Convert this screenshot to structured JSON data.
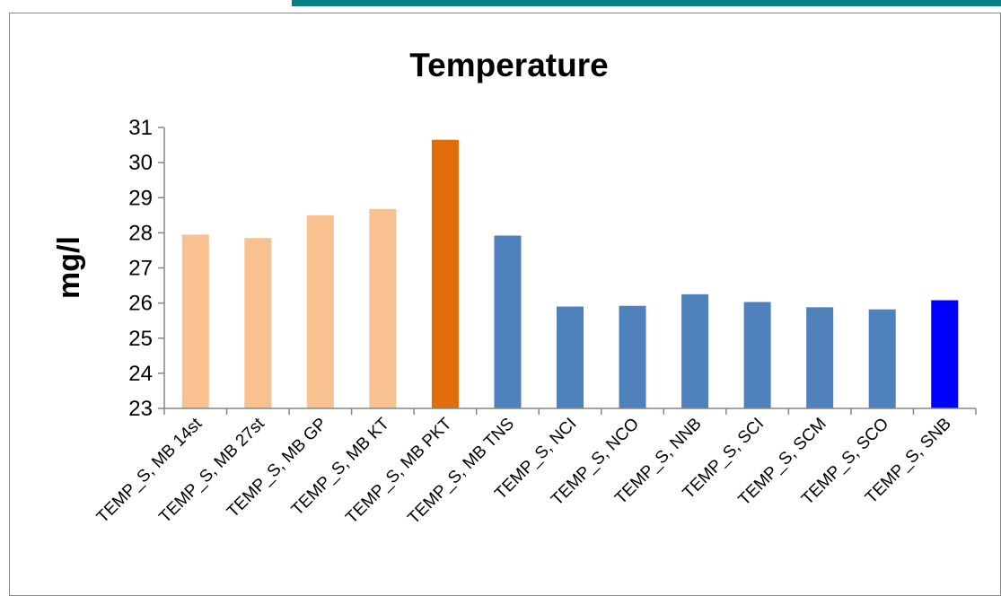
{
  "chart_data": {
    "type": "bar",
    "title": "Temperature",
    "xlabel": "",
    "ylabel": "mg/l",
    "ylim": [
      23,
      31
    ],
    "yticks": [
      23,
      24,
      25,
      26,
      27,
      28,
      29,
      30,
      31
    ],
    "grid": false,
    "legend": "none",
    "categories": [
      "TEMP_S, MB 14st",
      "TEMP_S, MB 27st",
      "TEMP_S, MB GP",
      "TEMP_S, MB KT",
      "TEMP_S, MB PKT",
      "TEMP_S, MB TNS",
      "TEMP_S, NCI",
      "TEMP_S, NCO",
      "TEMP_S, NNB",
      "TEMP_S, SCI",
      "TEMP_S, SCM",
      "TEMP_S, SCO",
      "TEMP_S, SNB"
    ],
    "values": [
      27.95,
      27.85,
      28.5,
      28.68,
      30.65,
      27.92,
      25.9,
      25.92,
      26.25,
      26.03,
      25.88,
      25.82,
      26.08
    ],
    "bar_colors": [
      "#f9c190",
      "#f9c190",
      "#f9c190",
      "#f9c190",
      "#e36c0a",
      "#4f81bd",
      "#4f81bd",
      "#4f81bd",
      "#4f81bd",
      "#4f81bd",
      "#4f81bd",
      "#4f81bd",
      "#0000ff"
    ]
  }
}
